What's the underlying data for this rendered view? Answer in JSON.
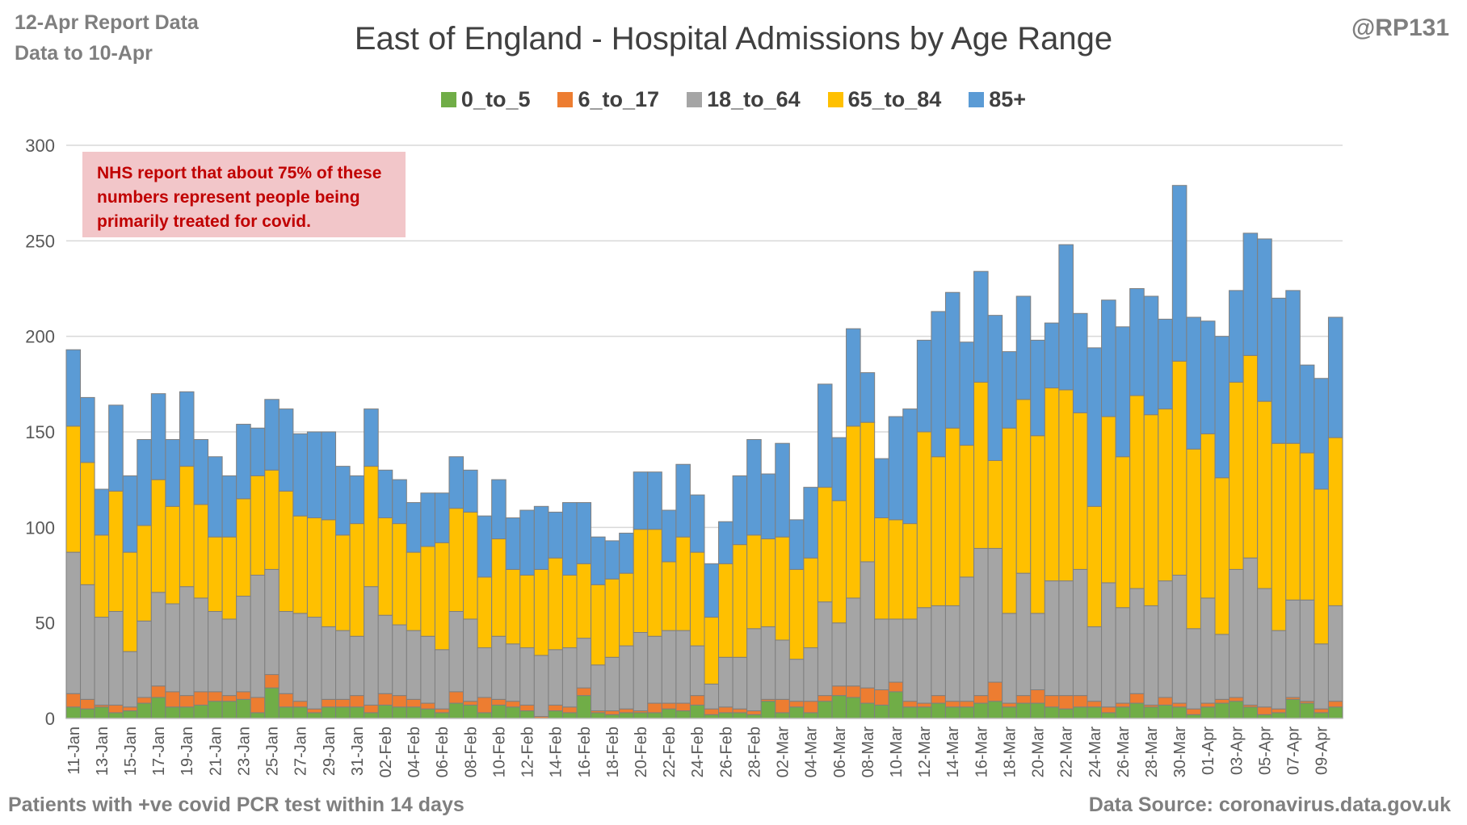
{
  "header": {
    "report_line1": "12-Apr Report Data",
    "report_line2": "Data to 10-Apr",
    "handle": "@RP131"
  },
  "footer": {
    "footnote": "Patients with  +ve covid PCR test within 14 days",
    "source": "Data Source: coronavirus.data.gov.uk"
  },
  "note": {
    "line1": "NHS report that about 75% of these",
    "line2": "numbers represent people being",
    "line3": "primarily treated for covid."
  },
  "colors": {
    "0_to_5": "#70ad47",
    "6_to_17": "#ed7d31",
    "18_to_64": "#a5a5a5",
    "65_to_84": "#ffc000",
    "85+": "#5b9bd5",
    "gridline": "#d9d9d9",
    "axis_text": "#595959",
    "note_bg": "#f2c6c9",
    "note_text": "#c00000"
  },
  "chart_data": {
    "type": "bar",
    "stacked": true,
    "title": "East of England - Hospital Admissions by Age Range",
    "xlabel": "",
    "ylabel": "",
    "ylim": [
      0,
      300
    ],
    "yticks": [
      0,
      50,
      100,
      150,
      200,
      250,
      300
    ],
    "grid": true,
    "legend_position": "top",
    "x_tick_labels": [
      "11-Jan",
      "13-Jan",
      "15-Jan",
      "17-Jan",
      "19-Jan",
      "21-Jan",
      "23-Jan",
      "25-Jan",
      "27-Jan",
      "29-Jan",
      "31-Jan",
      "02-Feb",
      "04-Feb",
      "06-Feb",
      "08-Feb",
      "10-Feb",
      "12-Feb",
      "14-Feb",
      "16-Feb",
      "18-Feb",
      "20-Feb",
      "22-Feb",
      "24-Feb",
      "26-Feb",
      "28-Feb",
      "02-Mar",
      "04-Mar",
      "06-Mar",
      "08-Mar",
      "10-Mar",
      "12-Mar",
      "14-Mar",
      "16-Mar",
      "18-Mar",
      "20-Mar",
      "22-Mar",
      "24-Mar",
      "26-Mar",
      "28-Mar",
      "30-Mar",
      "01-Apr",
      "03-Apr",
      "05-Apr",
      "07-Apr",
      "09-Apr"
    ],
    "categories": [
      "11-Jan",
      "12-Jan",
      "13-Jan",
      "14-Jan",
      "15-Jan",
      "16-Jan",
      "17-Jan",
      "18-Jan",
      "19-Jan",
      "20-Jan",
      "21-Jan",
      "22-Jan",
      "23-Jan",
      "24-Jan",
      "25-Jan",
      "26-Jan",
      "27-Jan",
      "28-Jan",
      "29-Jan",
      "30-Jan",
      "31-Jan",
      "01-Feb",
      "02-Feb",
      "03-Feb",
      "04-Feb",
      "05-Feb",
      "06-Feb",
      "07-Feb",
      "08-Feb",
      "09-Feb",
      "10-Feb",
      "11-Feb",
      "12-Feb",
      "13-Feb",
      "14-Feb",
      "15-Feb",
      "16-Feb",
      "17-Feb",
      "18-Feb",
      "19-Feb",
      "20-Feb",
      "21-Feb",
      "22-Feb",
      "23-Feb",
      "24-Feb",
      "25-Feb",
      "26-Feb",
      "27-Feb",
      "28-Feb",
      "01-Mar",
      "02-Mar",
      "03-Mar",
      "04-Mar",
      "05-Mar",
      "06-Mar",
      "07-Mar",
      "08-Mar",
      "09-Mar",
      "10-Mar",
      "11-Mar",
      "12-Mar",
      "13-Mar",
      "14-Mar",
      "15-Mar",
      "16-Mar",
      "17-Mar",
      "18-Mar",
      "19-Mar",
      "20-Mar",
      "21-Mar",
      "22-Mar",
      "23-Mar",
      "24-Mar",
      "25-Mar",
      "26-Mar",
      "27-Mar",
      "28-Mar",
      "29-Mar",
      "30-Mar",
      "31-Mar",
      "01-Apr",
      "02-Apr",
      "03-Apr",
      "04-Apr",
      "05-Apr",
      "06-Apr",
      "07-Apr",
      "08-Apr",
      "09-Apr",
      "10-Apr"
    ],
    "series": [
      {
        "name": "0_to_5",
        "values": [
          6,
          5,
          6,
          3,
          4,
          8,
          11,
          6,
          6,
          7,
          9,
          9,
          10,
          3,
          16,
          6,
          6,
          3,
          6,
          6,
          6,
          3,
          7,
          6,
          6,
          5,
          3,
          8,
          7,
          3,
          7,
          6,
          4,
          0,
          4,
          3,
          12,
          3,
          2,
          3,
          3,
          3,
          5,
          4,
          7,
          2,
          3,
          3,
          2,
          9,
          3,
          6,
          3,
          9,
          12,
          11,
          8,
          7,
          14,
          6,
          6,
          8,
          6,
          6,
          8,
          9,
          6,
          8,
          8,
          6,
          5,
          6,
          6,
          3,
          6,
          8,
          6,
          7,
          6,
          2,
          6,
          8,
          9,
          6,
          2,
          3,
          10,
          8,
          3,
          6
        ]
      },
      {
        "name": "6_to_17",
        "values": [
          7,
          5,
          1,
          4,
          2,
          3,
          6,
          8,
          6,
          7,
          5,
          3,
          4,
          8,
          7,
          7,
          3,
          2,
          4,
          4,
          6,
          4,
          6,
          6,
          4,
          3,
          2,
          6,
          2,
          8,
          3,
          3,
          3,
          1,
          3,
          3,
          4,
          1,
          2,
          2,
          1,
          5,
          3,
          4,
          5,
          3,
          3,
          2,
          2,
          1,
          7,
          3,
          6,
          3,
          5,
          6,
          8,
          8,
          5,
          3,
          2,
          4,
          3,
          3,
          4,
          10,
          2,
          4,
          7,
          6,
          7,
          6,
          3,
          3,
          2,
          5,
          1,
          4,
          2,
          3,
          2,
          2,
          2,
          1,
          4,
          2,
          1,
          1,
          2,
          3
        ]
      },
      {
        "name": "18_to_64",
        "values": [
          74,
          60,
          46,
          49,
          29,
          40,
          49,
          46,
          57,
          49,
          42,
          40,
          50,
          64,
          55,
          43,
          46,
          48,
          38,
          36,
          31,
          62,
          41,
          37,
          36,
          35,
          31,
          42,
          43,
          26,
          33,
          30,
          30,
          32,
          29,
          31,
          26,
          24,
          28,
          33,
          41,
          35,
          38,
          38,
          26,
          13,
          26,
          27,
          43,
          38,
          31,
          22,
          28,
          49,
          33,
          46,
          66,
          37,
          33,
          43,
          50,
          47,
          50,
          65,
          77,
          70,
          47,
          64,
          40,
          60,
          60,
          66,
          39,
          65,
          50,
          55,
          52,
          61,
          67,
          42,
          55,
          34,
          67,
          77,
          62,
          41,
          51,
          53,
          34,
          50
        ]
      },
      {
        "name": "65_to_84",
        "values": [
          66,
          64,
          43,
          63,
          52,
          50,
          59,
          51,
          63,
          49,
          39,
          43,
          51,
          52,
          52,
          63,
          51,
          52,
          56,
          50,
          59,
          63,
          51,
          53,
          41,
          47,
          56,
          54,
          56,
          37,
          51,
          39,
          38,
          45,
          48,
          38,
          39,
          42,
          41,
          38,
          54,
          56,
          36,
          49,
          49,
          35,
          49,
          59,
          49,
          46,
          54,
          47,
          47,
          60,
          64,
          90,
          73,
          53,
          52,
          50,
          92,
          78,
          93,
          69,
          87,
          46,
          97,
          91,
          93,
          101,
          100,
          82,
          63,
          87,
          79,
          101,
          100,
          90,
          112,
          94,
          86,
          82,
          98,
          106,
          98,
          98,
          82,
          77,
          81,
          88
        ]
      },
      {
        "name": "85+",
        "values": [
          40,
          34,
          24,
          45,
          40,
          45,
          45,
          35,
          39,
          34,
          42,
          32,
          39,
          25,
          37,
          43,
          43,
          45,
          46,
          36,
          25,
          30,
          25,
          23,
          26,
          28,
          26,
          27,
          22,
          32,
          31,
          27,
          34,
          33,
          24,
          38,
          32,
          25,
          20,
          21,
          30,
          30,
          27,
          38,
          30,
          28,
          22,
          36,
          50,
          34,
          49,
          26,
          37,
          54,
          33,
          51,
          26,
          31,
          54,
          60,
          48,
          76,
          71,
          54,
          58,
          76,
          40,
          54,
          50,
          34,
          76,
          52,
          83,
          61,
          68,
          56,
          62,
          47,
          92,
          69,
          59,
          74,
          48,
          64,
          85,
          76,
          80,
          46,
          58,
          63
        ]
      }
    ]
  }
}
